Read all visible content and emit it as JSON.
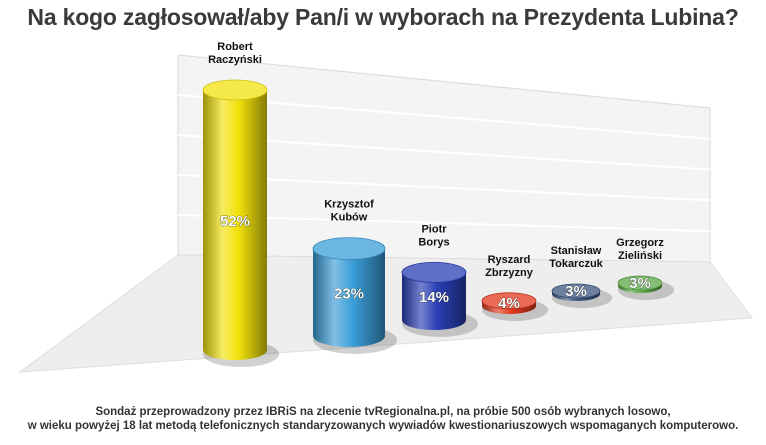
{
  "chart_data": {
    "type": "bar",
    "title": "Na kogo zagłosował/aby Pan/i w wyborach na Prezydenta Lubina?",
    "categories": [
      "Robert Raczyński",
      "Krzysztof Kubów",
      "Piotr Borys",
      "Ryszard Zbrzyzny",
      "Stanisław Tokarczuk",
      "Grzegorz Zieliński"
    ],
    "category_lines": [
      [
        "Robert",
        "Raczyński"
      ],
      [
        "Krzysztof",
        "Kubów"
      ],
      [
        "Piotr",
        "Borys"
      ],
      [
        "Ryszard",
        "Zbrzyzny"
      ],
      [
        "Stanisław",
        "Tokarczuk"
      ],
      [
        "Grzegorz",
        "Zieliński"
      ]
    ],
    "values": [
      52,
      23,
      14,
      4,
      3,
      3
    ],
    "value_labels": [
      "52%",
      "23%",
      "14%",
      "4%",
      "3%",
      "3%"
    ],
    "colors": [
      "#f2e20c",
      "#3b9ed8",
      "#2a3fb5",
      "#e23a1e",
      "#3c5680",
      "#5aa845"
    ],
    "ylim": [
      0,
      60
    ],
    "grid": true,
    "legend": "none",
    "style": "3d-cylinders"
  },
  "footnote": [
    "Sondaż przeprowadzony przez IBRiS na zlecenie tvRegionalna.pl, na próbie 500 osób wybranych losowo,",
    "w wieku powyżej 18 lat metodą telefonicznych standaryzowanych wywiadów kwestionariuszowych wspomaganych komputerowo."
  ]
}
